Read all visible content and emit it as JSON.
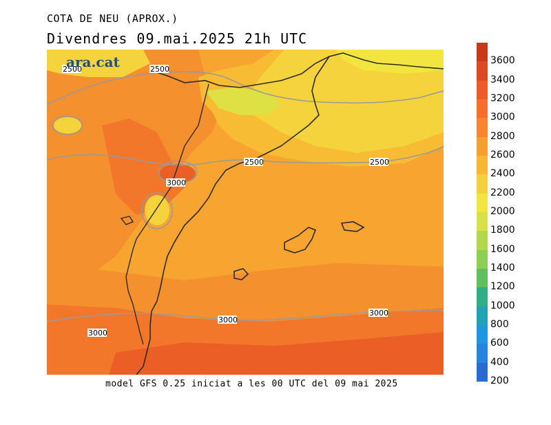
{
  "header": {
    "title": "COTA DE NEU (APROX.)",
    "subtitle": "Divendres  09.mai.2025  21h  UTC"
  },
  "footer": {
    "text": "model GFS 0.25 iniciat a les 00 UTC del 09 mai 2025"
  },
  "logo": {
    "text": "ara.cat"
  },
  "colorbar": {
    "labels": [
      "3600",
      "3400",
      "3200",
      "3000",
      "2800",
      "2600",
      "2400",
      "2200",
      "2000",
      "1800",
      "1600",
      "1400",
      "1200",
      "1000",
      "800",
      "600",
      "400",
      "200"
    ],
    "colors_top_to_bottom": [
      "#c8391c",
      "#dc4a22",
      "#ee5b26",
      "#f56e2a",
      "#f7862e",
      "#f79e30",
      "#f7b733",
      "#f5d03a",
      "#f3e540",
      "#d8e145",
      "#b4d84b",
      "#8dcf52",
      "#5fc05c",
      "#2fae88",
      "#22a3b5",
      "#1e96e0",
      "#2584dc",
      "#2a6bd2"
    ]
  },
  "map": {
    "contour_labels": [
      "2500",
      "2500",
      "2500",
      "2500",
      "3000",
      "3000",
      "3000",
      "3000"
    ],
    "colors": {
      "level_2200": "#f5d33c",
      "level_2400": "#f7bb34",
      "level_2600": "#f7a431",
      "level_2800": "#f5902e",
      "level_3000": "#f2772b",
      "level_3200": "#eb5f26",
      "contour": "#9a9a9a",
      "coast": "#2a2a2a"
    }
  }
}
